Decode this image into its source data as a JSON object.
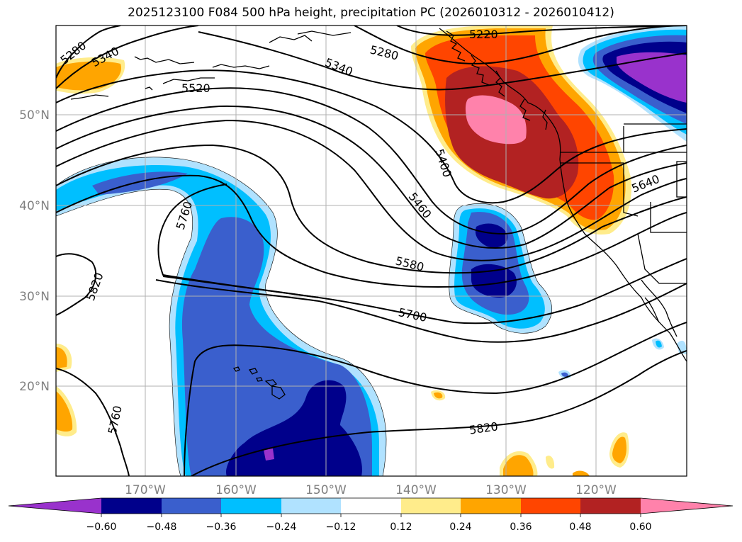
{
  "title": "2025123100 F084 500 hPa height, precipitation PC (2026010312 - 2026010412)",
  "lat_labels": [
    "50°N",
    "40°N",
    "30°N",
    "20°N"
  ],
  "lon_labels": [
    "170°W",
    "160°W",
    "150°W",
    "140°W",
    "130°W",
    "120°W"
  ],
  "contour_labels": [
    "5280",
    "5340",
    "5520",
    "5760",
    "5820",
    "5220",
    "5280",
    "5340",
    "5400",
    "5460",
    "5580",
    "5700",
    "5640",
    "5820",
    "5760"
  ],
  "colorbar": {
    "ticks": [
      "−0.60",
      "−0.48",
      "−0.36",
      "−0.24",
      "−0.12",
      "0.12",
      "0.24",
      "0.36",
      "0.48",
      "0.60"
    ],
    "colors": [
      "#9932cc",
      "#00008b",
      "#3a5fcd",
      "#00bfff",
      "#b0e2ff",
      "#ffffff",
      "#ffec8b",
      "#ffa500",
      "#ff4500",
      "#b22222",
      "#ff82ab"
    ]
  }
}
